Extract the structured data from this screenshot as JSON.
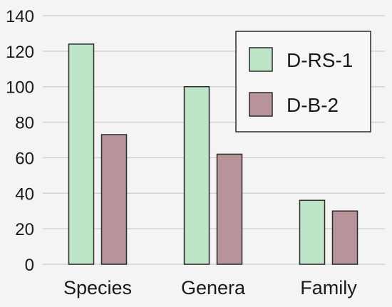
{
  "chart_data": {
    "type": "bar",
    "title": "",
    "xlabel": "",
    "ylabel": "",
    "categories": [
      "Species",
      "Genera",
      "Family"
    ],
    "series": [
      {
        "name": "D-RS-1",
        "values": [
          124,
          100,
          36
        ],
        "color": "#bfe5c8"
      },
      {
        "name": "D-B-2",
        "values": [
          73,
          62,
          30
        ],
        "color": "#b8949a"
      }
    ],
    "ylim": [
      0,
      140
    ],
    "yticks": [
      0,
      20,
      40,
      60,
      80,
      100,
      120,
      140
    ],
    "ytick_labels": [
      "0",
      "20",
      "40",
      "60",
      "80",
      "100",
      "120",
      "140"
    ],
    "grid": true,
    "legend_position": "top-right"
  }
}
